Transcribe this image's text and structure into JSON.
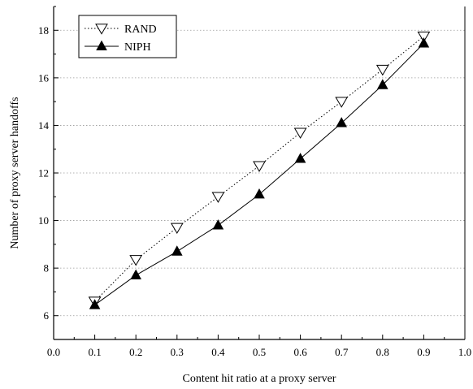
{
  "chart_data": {
    "type": "line",
    "xlabel": "Content hit ratio at a proxy server",
    "ylabel": "Number of proxy server handoffs",
    "xlim": [
      0.0,
      1.0
    ],
    "ylim": [
      5,
      19
    ],
    "x_ticks": [
      "0.0",
      "0.1",
      "0.2",
      "0.3",
      "0.4",
      "0.5",
      "0.6",
      "0.7",
      "0.8",
      "0.9",
      "1.0"
    ],
    "y_ticks": [
      "6",
      "8",
      "10",
      "12",
      "14",
      "16",
      "18"
    ],
    "x": [
      0.1,
      0.2,
      0.3,
      0.4,
      0.5,
      0.6,
      0.7,
      0.8,
      0.9
    ],
    "grid": "horizontal-dotted",
    "legend_position": "top-left",
    "series": [
      {
        "name": "RAND",
        "marker": "open-down-triangle",
        "line": "dotted",
        "color": "#000000",
        "values": [
          6.6,
          8.35,
          9.7,
          11.0,
          12.3,
          13.7,
          15.0,
          16.35,
          17.75
        ]
      },
      {
        "name": "NIPH",
        "marker": "filled-up-triangle",
        "line": "solid",
        "color": "#000000",
        "values": [
          6.45,
          7.7,
          8.7,
          9.8,
          11.1,
          12.6,
          14.1,
          15.7,
          17.45
        ]
      }
    ]
  }
}
